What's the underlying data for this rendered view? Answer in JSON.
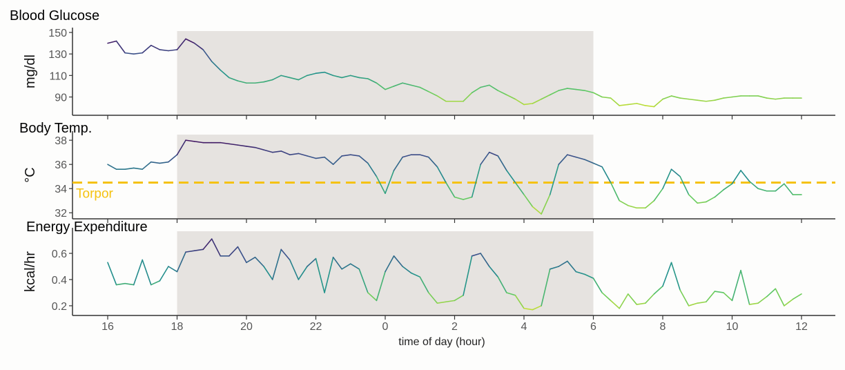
{
  "chart_data": {
    "type": "line",
    "xlabel": "time of day (hour)",
    "xticks": [
      "16",
      "18",
      "20",
      "22",
      "0",
      "2",
      "4",
      "6",
      "8",
      "10",
      "12"
    ],
    "xtick_hours": [
      16,
      18,
      20,
      22,
      0,
      2,
      4,
      6,
      8,
      10,
      12
    ],
    "shaded_interval": [
      "18",
      "6"
    ],
    "shade_color": "#e6e3e0",
    "colormap": "viridis",
    "x": [
      16,
      16.25,
      16.5,
      16.75,
      17,
      17.25,
      17.5,
      17.75,
      18,
      18.25,
      18.5,
      18.75,
      19,
      19.25,
      19.5,
      19.75,
      20,
      20.25,
      20.5,
      20.75,
      21,
      21.25,
      21.5,
      21.75,
      22,
      22.25,
      22.5,
      22.75,
      23,
      23.25,
      23.5,
      23.75,
      0,
      0.25,
      0.5,
      0.75,
      1,
      1.25,
      1.5,
      1.75,
      2,
      2.25,
      2.5,
      2.75,
      3,
      3.25,
      3.5,
      3.75,
      4,
      4.25,
      4.5,
      4.75,
      5,
      5.25,
      5.5,
      5.75,
      6,
      6.25,
      6.5,
      6.75,
      7,
      7.25,
      7.5,
      7.75,
      8,
      8.25,
      8.5,
      8.75,
      9,
      9.25,
      9.5,
      9.75,
      10,
      10.25,
      10.5,
      10.75,
      11,
      11.25,
      11.5,
      11.75,
      12
    ],
    "panels": [
      {
        "title": "Blood Glucose",
        "ylabel": "mg/dl",
        "yticks": [
          90,
          110,
          130,
          150
        ],
        "ylim": [
          73,
          154.5
        ],
        "values": [
          140,
          142,
          131,
          130,
          131,
          138,
          134,
          133,
          134,
          144,
          140,
          134,
          123,
          115,
          108,
          105,
          103,
          103,
          104,
          106,
          110,
          108,
          106,
          110,
          112,
          113,
          110,
          108,
          110,
          108,
          107,
          103,
          97,
          100,
          103,
          101,
          99,
          95,
          91,
          86,
          86,
          86,
          94,
          99,
          101,
          96,
          92,
          88,
          83,
          84,
          88,
          92,
          96,
          98,
          97,
          96,
          94,
          90,
          89,
          82,
          83,
          84,
          82,
          81,
          88,
          91,
          89,
          88,
          87,
          86,
          87,
          89,
          90,
          91,
          91,
          91,
          89,
          88,
          89,
          89,
          89
        ]
      },
      {
        "title": "Body Temp.",
        "ylabel": "°C",
        "yticks": [
          32,
          34,
          36,
          38
        ],
        "ylim": [
          31.5,
          38.75
        ],
        "values": [
          36.0,
          35.6,
          35.6,
          35.7,
          35.6,
          36.2,
          36.1,
          36.2,
          36.8,
          38.0,
          37.9,
          37.8,
          37.8,
          37.8,
          37.7,
          37.6,
          37.5,
          37.4,
          37.2,
          37.0,
          37.1,
          36.8,
          36.9,
          36.7,
          36.5,
          36.6,
          36.0,
          36.7,
          36.8,
          36.7,
          36.1,
          35.0,
          33.6,
          35.5,
          36.6,
          36.8,
          36.8,
          36.6,
          35.8,
          34.5,
          33.3,
          33.1,
          33.3,
          36.0,
          37.0,
          36.7,
          35.5,
          34.5,
          33.5,
          32.5,
          31.9,
          33.5,
          36.0,
          36.8,
          36.6,
          36.4,
          36.1,
          35.8,
          34.5,
          33.0,
          32.6,
          32.4,
          32.4,
          33.0,
          34.0,
          35.6,
          35.0,
          33.5,
          32.8,
          32.9,
          33.3,
          33.9,
          34.4,
          35.5,
          34.6,
          34.0,
          33.8,
          33.8,
          34.4,
          33.5,
          33.5
        ],
        "threshold": {
          "label": "Torpor",
          "value": 34.5,
          "color": "#f5c211"
        }
      },
      {
        "title": "Energy Expenditure",
        "ylabel": "kcal/hr",
        "yticks": [
          0.2,
          0.4,
          0.6
        ],
        "ylim": [
          0.126,
          0.795
        ],
        "values": [
          0.53,
          0.36,
          0.37,
          0.36,
          0.55,
          0.36,
          0.39,
          0.5,
          0.46,
          0.61,
          0.62,
          0.63,
          0.71,
          0.58,
          0.58,
          0.65,
          0.53,
          0.57,
          0.5,
          0.4,
          0.63,
          0.55,
          0.4,
          0.5,
          0.56,
          0.3,
          0.57,
          0.48,
          0.52,
          0.48,
          0.3,
          0.24,
          0.46,
          0.58,
          0.5,
          0.45,
          0.42,
          0.3,
          0.22,
          0.23,
          0.24,
          0.28,
          0.58,
          0.6,
          0.5,
          0.42,
          0.3,
          0.28,
          0.18,
          0.17,
          0.2,
          0.48,
          0.5,
          0.54,
          0.46,
          0.44,
          0.41,
          0.3,
          0.24,
          0.18,
          0.29,
          0.21,
          0.22,
          0.29,
          0.35,
          0.53,
          0.32,
          0.2,
          0.22,
          0.23,
          0.31,
          0.3,
          0.24,
          0.47,
          0.21,
          0.22,
          0.27,
          0.33,
          0.2,
          0.25,
          0.29
        ]
      }
    ]
  }
}
